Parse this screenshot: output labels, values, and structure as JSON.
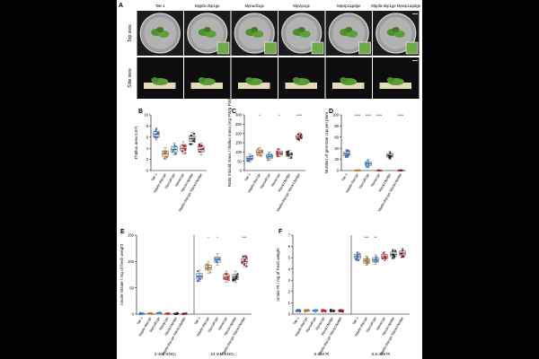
{
  "figure": {
    "photo_labels": [
      "Tak-1",
      "Mppfa-dsp1ge",
      "Mpnudt1ge",
      "Mpvip1ge",
      "Mpvip1Δpdge",
      "Mppfa-dsp1ge Mpvip1Δpdge"
    ],
    "row_labels": [
      "Top view",
      "Side view"
    ],
    "panel_letters": [
      "A",
      "B",
      "C",
      "D",
      "E",
      "F"
    ],
    "genotypes_short": [
      "Tak-1",
      "Mppfa-dsp1ge",
      "Mpnudt1ge",
      "Mpvip1ge",
      "Mpvip1Δpdge",
      "Mppfa-dsp1ge Mpvip1Δpdge"
    ],
    "genotypes_combined": [
      "Tak-1",
      "Mppfa-dsp1ge",
      "Mpnudt1ge",
      "Mpvip1ge",
      "Mpvip1Δpdge",
      "Mppfa-dsp1ge Mpvip1Δpdge"
    ]
  },
  "chart_data": [
    {
      "type": "box",
      "id": "B",
      "ylabel": "Thallus area (cm²)",
      "ylim": [
        0,
        10
      ],
      "yticks": [
        0,
        2,
        4,
        6,
        8,
        10
      ],
      "categories": [
        "Tak-1",
        "Mppfa-dsp1ge",
        "Mpnudt1ge",
        "Mpvip1ge",
        "Mpvip1Δpdge",
        "Mppfa-dsp1ge Mpvip1Δpdge"
      ],
      "medians": [
        6.5,
        3.0,
        3.8,
        4.0,
        5.7,
        3.8
      ],
      "colors": [
        "#3b6fc2",
        "#c97a2a",
        "#3a8ed0",
        "#c42b2b",
        "#222222",
        "#8b1a1a"
      ],
      "annotations": []
    },
    {
      "type": "box",
      "id": "C",
      "ylabel": "Ratio rhizoid mass / thallus mass (mg FW/g FW)",
      "ylim": [
        0,
        300
      ],
      "yticks": [
        0,
        50,
        100,
        150,
        200,
        250,
        300
      ],
      "categories": [
        "Tak-1",
        "Mppfa-dsp1ge",
        "Mpnudt1ge",
        "Mpvip1ge",
        "Mpvip1Δpdge",
        "Mppfa-dsp1ge Mpvip1Δpdge"
      ],
      "medians": [
        65,
        100,
        75,
        95,
        85,
        180
      ],
      "colors": [
        "#3b6fc2",
        "#c97a2a",
        "#3a8ed0",
        "#c42b2b",
        "#222222",
        "#8b1a1a"
      ],
      "annotations": [
        "",
        "*",
        "",
        "*",
        "",
        "****"
      ]
    },
    {
      "type": "box",
      "id": "D",
      "ylabel": "Number of gemmae cup per plant",
      "ylim": [
        0,
        100
      ],
      "yticks": [
        0,
        20,
        40,
        60,
        80,
        100
      ],
      "categories": [
        "Tak-1",
        "Mppfa-dsp1ge",
        "Mpnudt1ge",
        "Mpvip1ge",
        "Mpvip1Δpdge",
        "Mppfa-dsp1ge Mpvip1Δpdge"
      ],
      "medians": [
        30,
        0,
        12,
        0,
        27,
        0
      ],
      "colors": [
        "#3b6fc2",
        "#c97a2a",
        "#3a8ed0",
        "#c42b2b",
        "#222222",
        "#8b1a1a"
      ],
      "annotations": [
        "",
        "****",
        "****",
        "****",
        "",
        "****"
      ]
    },
    {
      "type": "box",
      "id": "E",
      "ylabel": "nmole nitrate / mg of fresh weight",
      "ylim": [
        0,
        150
      ],
      "yticks": [
        0,
        50,
        100,
        150
      ],
      "groups": [
        "0 mM KNO₃",
        "24 mM KNO₃"
      ],
      "categories": [
        "Tak-1",
        "Mppfa-dsp1ge",
        "Mpnudt1ge",
        "Mpvip1ge",
        "Mpvip1Δpdge",
        "Mppfa-dsp1ge Mpvip1Δpdge"
      ],
      "medians_group1": [
        1,
        1,
        2,
        1,
        1,
        1
      ],
      "medians_group2": [
        72,
        88,
        103,
        70,
        70,
        100
      ],
      "colors": [
        "#3b6fc2",
        "#c97a2a",
        "#3a8ed0",
        "#c42b2b",
        "#222222",
        "#8b1a1a"
      ],
      "annotations_group2": [
        "",
        "*",
        "*",
        "",
        "",
        "***"
      ]
    },
    {
      "type": "box",
      "id": "F",
      "ylabel": "nmole Pi / mg of fresh weight",
      "ylim": [
        0,
        7
      ],
      "yticks": [
        0,
        1,
        2,
        3,
        4,
        5,
        6,
        7
      ],
      "groups": [
        "0 mM Pi",
        "0.5 mM Pi"
      ],
      "categories": [
        "Tak-1",
        "Mppfa-dsp1ge",
        "Mpnudt1ge",
        "Mpvip1ge",
        "Mpvip1Δpdge",
        "Mppfa-dsp1ge Mpvip1Δpdge"
      ],
      "medians_group1": [
        0.3,
        0.3,
        0.3,
        0.3,
        0.3,
        0.3
      ],
      "medians_group2": [
        5.1,
        4.7,
        4.8,
        5.1,
        5.3,
        5.4
      ],
      "colors": [
        "#3b6fc2",
        "#c97a2a",
        "#3a8ed0",
        "#c42b2b",
        "#222222",
        "#8b1a1a"
      ],
      "annotations_group2": [
        "",
        "***",
        "**",
        "",
        "",
        ""
      ]
    }
  ]
}
